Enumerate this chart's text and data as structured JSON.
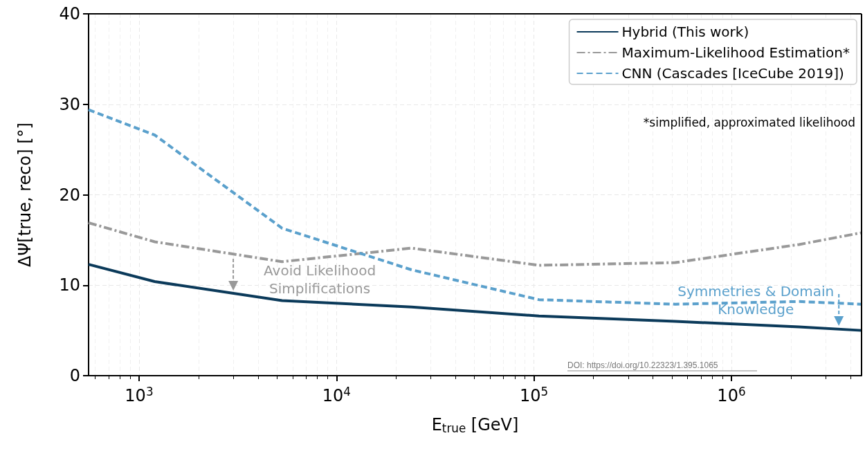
{
  "chart_data": {
    "type": "line",
    "xlabel": "E$_{true}$ [GeV]",
    "ylabel": "ΔΨ[true, reco] [°]",
    "log": "x",
    "xlim": [
      555,
      4560000
    ],
    "ylim": [
      0,
      40
    ],
    "xticks": [
      {
        "value": 1000,
        "label": "10$^{3}$"
      },
      {
        "value": 10000,
        "label": "10$^{4}$"
      },
      {
        "value": 100000,
        "label": "10$^{5}$"
      },
      {
        "value": 1000000,
        "label": "10$^{6}$"
      }
    ],
    "yticks": [
      0,
      10,
      20,
      30,
      40
    ],
    "grid": true,
    "legend": "top right",
    "marker": "none",
    "series": [
      {
        "name": "Hybrid (This work)",
        "color": "#0b3a5a",
        "line_style": "solid",
        "x": [
          555,
          1200,
          5300,
          24000,
          106000,
          520000,
          2200000,
          4560000
        ],
        "values": [
          12.3,
          10.4,
          8.3,
          7.6,
          6.6,
          6.0,
          5.4,
          5.0
        ]
      },
      {
        "name": "Maximum-Likelihood Estimation*",
        "color": "#999999",
        "line_style": "dashdot",
        "x": [
          555,
          1200,
          5300,
          24000,
          106000,
          520000,
          2200000,
          4560000
        ],
        "values": [
          16.9,
          14.8,
          12.6,
          14.1,
          12.2,
          12.5,
          14.5,
          15.8
        ]
      },
      {
        "name": "CNN (Cascades [IceCube 2019])",
        "color": "#5aa0cc",
        "line_style": "dashed",
        "x": [
          555,
          1200,
          5300,
          24000,
          106000,
          520000,
          2200000,
          4560000
        ],
        "values": [
          29.4,
          26.6,
          16.3,
          11.7,
          8.4,
          7.9,
          8.2,
          7.9
        ]
      }
    ],
    "annotations": [
      {
        "text": "Avoid Likelihood\nSimplifications",
        "x": 3000,
        "y": 9.4
      },
      {
        "text": "Symmetries & Domain\nKnowledge",
        "x": 3500000,
        "y": 5.5
      },
      "*simplified, approximated likelihood",
      "DOI: https://doi.org/10.22323/1.395.1065"
    ]
  }
}
